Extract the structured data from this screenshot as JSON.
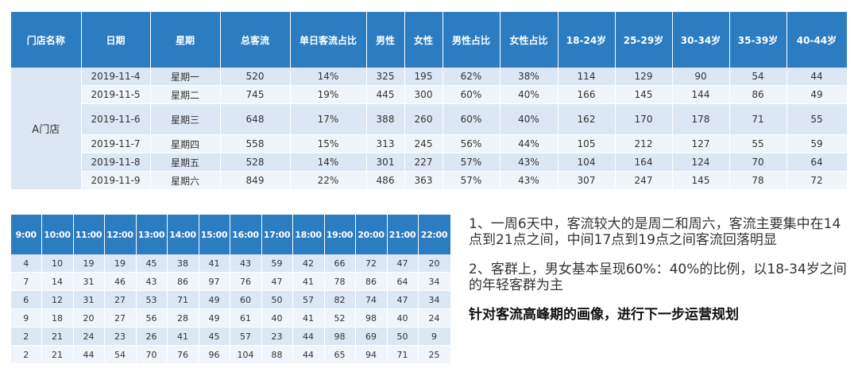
{
  "top_table": {
    "headers": [
      "门店名称",
      "日期",
      "星期",
      "总客流",
      "单日客流占比",
      "男性",
      "女性",
      "男性占比",
      "女性占比",
      "18-24岁",
      "25-29岁",
      "30-34岁",
      "35-39岁",
      "40-44岁"
    ],
    "store": "A门店",
    "rows": [
      [
        "2019-11-4",
        "星期一",
        "520",
        "14%",
        "325",
        "195",
        "62%",
        "38%",
        "114",
        "129",
        "90",
        "54",
        "44"
      ],
      [
        "2019-11-5",
        "星期二",
        "745",
        "19%",
        "445",
        "300",
        "60%",
        "40%",
        "166",
        "145",
        "144",
        "86",
        "49"
      ],
      [
        "2019-11-6",
        "星期三",
        "648",
        "17%",
        "388",
        "260",
        "60%",
        "40%",
        "162",
        "170",
        "178",
        "71",
        "55"
      ],
      [
        "2019-11-7",
        "星期四",
        "558",
        "15%",
        "313",
        "245",
        "56%",
        "44%",
        "105",
        "212",
        "127",
        "55",
        "59"
      ],
      [
        "2019-11-8",
        "星期五",
        "528",
        "14%",
        "301",
        "227",
        "57%",
        "43%",
        "104",
        "164",
        "124",
        "70",
        "64"
      ],
      [
        "2019-11-9",
        "星期六",
        "849",
        "22%",
        "486",
        "363",
        "57%",
        "43%",
        "307",
        "247",
        "145",
        "78",
        "72"
      ]
    ]
  },
  "hour_table": {
    "headers": [
      "9:00",
      "10:00",
      "11:00",
      "12:00",
      "13:00",
      "14:00",
      "15:00",
      "16:00",
      "17:00",
      "18:00",
      "19:00",
      "20:00",
      "21:00",
      "22:00"
    ],
    "rows": [
      [
        "4",
        "10",
        "19",
        "19",
        "45",
        "38",
        "41",
        "43",
        "59",
        "42",
        "66",
        "72",
        "47",
        "20"
      ],
      [
        "7",
        "14",
        "31",
        "46",
        "43",
        "86",
        "97",
        "76",
        "47",
        "41",
        "78",
        "86",
        "64",
        "34"
      ],
      [
        "6",
        "12",
        "31",
        "27",
        "53",
        "71",
        "49",
        "60",
        "50",
        "57",
        "82",
        "74",
        "47",
        "34"
      ],
      [
        "9",
        "18",
        "20",
        "27",
        "56",
        "28",
        "49",
        "61",
        "40",
        "41",
        "52",
        "98",
        "40",
        "24"
      ],
      [
        "2",
        "21",
        "24",
        "23",
        "26",
        "41",
        "45",
        "57",
        "23",
        "44",
        "98",
        "69",
        "50",
        "9"
      ],
      [
        "2",
        "21",
        "44",
        "54",
        "70",
        "76",
        "96",
        "104",
        "88",
        "44",
        "65",
        "94",
        "71",
        "25"
      ]
    ]
  },
  "notes": {
    "note1": "1、一周6天中，客流较大的是周二和周六，客流主要集中在14点到21点之间，中间17点到19点之间客流回落明显",
    "note2": "2、客群上，男女基本呈现60%：40%的比例，以18-34岁之间的年轻客群为主",
    "conclusion": "针对客流高峰期的画像，进行下一步运营规划"
  },
  "colors": {
    "header_blue": "#2b7cc1",
    "row_light": "#dbe7f4",
    "row_lighter": "#f0f5fb"
  }
}
